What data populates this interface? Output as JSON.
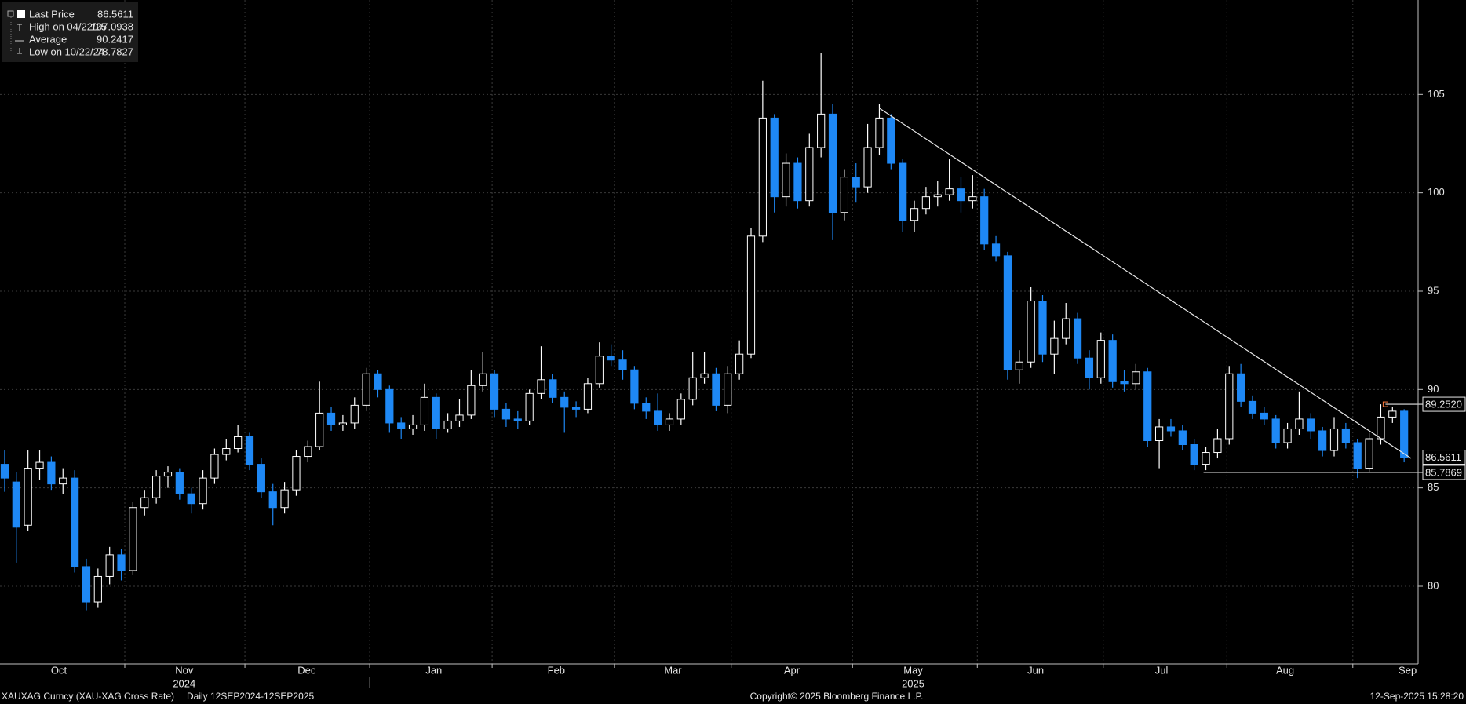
{
  "chart_data": {
    "type": "candlestick",
    "ylim": [
      76.05,
      109.8
    ],
    "yticks": [
      80,
      85,
      90,
      95,
      100,
      105
    ],
    "xlim": [
      -0.4,
      121.2
    ],
    "xticks": [
      {
        "value": 4.65,
        "label": "Oct"
      },
      {
        "value": 15.4,
        "label": "Nov"
      },
      {
        "value": 25.9,
        "label": "Dec"
      },
      {
        "value": 36.8,
        "label": "Jan"
      },
      {
        "value": 47.3,
        "label": "Feb"
      },
      {
        "value": 57.3,
        "label": "Mar"
      },
      {
        "value": 67.5,
        "label": "Apr"
      },
      {
        "value": 77.9,
        "label": "May"
      },
      {
        "value": 88.4,
        "label": "Jun"
      },
      {
        "value": 99.2,
        "label": "Jul"
      },
      {
        "value": 109.8,
        "label": "Aug"
      },
      {
        "value": 120.3,
        "label": "Sep"
      }
    ],
    "xgrid": [
      10.3,
      20.6,
      31.3,
      41.8,
      52.3,
      62.3,
      72.7,
      83.4,
      94.2,
      104.8,
      115.6
    ],
    "year_ticks": [
      {
        "value": 15.4,
        "label": "2024"
      },
      {
        "value": 77.9,
        "label": "2025"
      }
    ],
    "grid": true,
    "up_color": "#ffffff",
    "down_color": "#1e88f5",
    "ohlc": [
      [
        86.2,
        86.9,
        84.8,
        85.5
      ],
      [
        85.3,
        85.8,
        81.2,
        83.0
      ],
      [
        83.1,
        86.9,
        82.8,
        86.0
      ],
      [
        86.0,
        86.9,
        85.4,
        86.3
      ],
      [
        86.3,
        86.6,
        84.9,
        85.2
      ],
      [
        85.2,
        86.0,
        84.7,
        85.5
      ],
      [
        85.5,
        85.9,
        80.7,
        81.0
      ],
      [
        81.0,
        81.4,
        78.78,
        79.2
      ],
      [
        79.2,
        80.9,
        78.9,
        80.5
      ],
      [
        80.5,
        82.0,
        80.1,
        81.6
      ],
      [
        81.6,
        81.9,
        80.3,
        80.8
      ],
      [
        80.8,
        84.3,
        80.6,
        84.0
      ],
      [
        84.0,
        84.9,
        83.6,
        84.5
      ],
      [
        84.5,
        85.9,
        84.2,
        85.6
      ],
      [
        85.6,
        86.1,
        85.0,
        85.8
      ],
      [
        85.8,
        86.0,
        84.4,
        84.7
      ],
      [
        84.7,
        85.0,
        83.7,
        84.2
      ],
      [
        84.2,
        85.9,
        83.9,
        85.5
      ],
      [
        85.5,
        87.0,
        85.2,
        86.7
      ],
      [
        86.7,
        87.5,
        86.4,
        87.0
      ],
      [
        87.0,
        88.2,
        86.8,
        87.6
      ],
      [
        87.6,
        87.8,
        85.9,
        86.2
      ],
      [
        86.2,
        86.5,
        84.5,
        84.8
      ],
      [
        84.8,
        85.2,
        83.1,
        84.0
      ],
      [
        84.0,
        85.3,
        83.7,
        84.9
      ],
      [
        84.9,
        86.9,
        84.6,
        86.6
      ],
      [
        86.6,
        87.4,
        86.3,
        87.1
      ],
      [
        87.1,
        90.4,
        86.9,
        88.8
      ],
      [
        88.8,
        89.1,
        87.9,
        88.2
      ],
      [
        88.2,
        88.7,
        87.9,
        88.3
      ],
      [
        88.3,
        89.6,
        88.0,
        89.2
      ],
      [
        89.2,
        91.1,
        88.9,
        90.8
      ],
      [
        90.8,
        91.0,
        89.6,
        90.0
      ],
      [
        90.0,
        90.2,
        87.8,
        88.3
      ],
      [
        88.3,
        88.6,
        87.5,
        88.0
      ],
      [
        88.0,
        88.7,
        87.7,
        88.2
      ],
      [
        88.2,
        90.3,
        87.9,
        89.6
      ],
      [
        89.6,
        89.8,
        87.5,
        88.0
      ],
      [
        88.0,
        88.8,
        87.8,
        88.4
      ],
      [
        88.4,
        89.5,
        88.1,
        88.7
      ],
      [
        88.7,
        91.0,
        88.5,
        90.2
      ],
      [
        90.2,
        91.9,
        89.9,
        90.8
      ],
      [
        90.8,
        91.0,
        88.6,
        89.0
      ],
      [
        89.0,
        89.3,
        88.1,
        88.5
      ],
      [
        88.5,
        88.9,
        88.0,
        88.4
      ],
      [
        88.4,
        90.0,
        88.2,
        89.8
      ],
      [
        89.8,
        92.2,
        89.5,
        90.5
      ],
      [
        90.5,
        90.8,
        89.3,
        89.6
      ],
      [
        89.6,
        89.9,
        87.8,
        89.1
      ],
      [
        89.1,
        89.4,
        88.6,
        89.0
      ],
      [
        89.0,
        90.6,
        88.8,
        90.3
      ],
      [
        90.3,
        92.4,
        90.1,
        91.7
      ],
      [
        91.7,
        92.3,
        91.2,
        91.5
      ],
      [
        91.5,
        92.0,
        90.5,
        91.0
      ],
      [
        91.0,
        91.2,
        89.0,
        89.3
      ],
      [
        89.3,
        89.6,
        88.5,
        88.9
      ],
      [
        88.9,
        89.8,
        87.9,
        88.2
      ],
      [
        88.2,
        88.8,
        87.9,
        88.5
      ],
      [
        88.5,
        89.8,
        88.2,
        89.5
      ],
      [
        89.5,
        91.9,
        89.2,
        90.6
      ],
      [
        90.6,
        91.9,
        90.3,
        90.8
      ],
      [
        90.8,
        91.1,
        88.9,
        89.2
      ],
      [
        89.2,
        91.2,
        88.8,
        90.8
      ],
      [
        90.8,
        92.5,
        90.5,
        91.8
      ],
      [
        91.8,
        98.2,
        91.6,
        97.8
      ],
      [
        97.8,
        105.7,
        97.5,
        103.8
      ],
      [
        103.8,
        104.0,
        99.0,
        99.8
      ],
      [
        99.8,
        102.0,
        99.3,
        101.5
      ],
      [
        101.5,
        101.8,
        99.2,
        99.6
      ],
      [
        99.6,
        103.0,
        99.3,
        102.3
      ],
      [
        102.3,
        107.09,
        101.8,
        104.0
      ],
      [
        104.0,
        104.5,
        97.6,
        99.0
      ],
      [
        99.0,
        101.2,
        98.6,
        100.8
      ],
      [
        100.8,
        101.5,
        99.5,
        100.3
      ],
      [
        100.3,
        103.5,
        100.0,
        102.3
      ],
      [
        102.3,
        104.5,
        101.9,
        103.8
      ],
      [
        103.8,
        104.0,
        101.2,
        101.5
      ],
      [
        101.5,
        101.7,
        98.0,
        98.6
      ],
      [
        98.6,
        99.6,
        98.0,
        99.2
      ],
      [
        99.2,
        100.3,
        98.9,
        99.8
      ],
      [
        99.8,
        100.6,
        99.3,
        99.9
      ],
      [
        99.9,
        101.7,
        99.6,
        100.2
      ],
      [
        100.2,
        100.8,
        99.0,
        99.6
      ],
      [
        99.6,
        100.9,
        99.2,
        99.8
      ],
      [
        99.8,
        100.2,
        97.1,
        97.4
      ],
      [
        97.4,
        97.8,
        96.5,
        96.8
      ],
      [
        96.8,
        97.0,
        90.5,
        91.0
      ],
      [
        91.0,
        92.0,
        90.3,
        91.4
      ],
      [
        91.4,
        95.2,
        91.1,
        94.5
      ],
      [
        94.5,
        94.8,
        91.4,
        91.8
      ],
      [
        91.8,
        93.5,
        90.8,
        92.6
      ],
      [
        92.6,
        94.4,
        92.3,
        93.6
      ],
      [
        93.6,
        93.9,
        91.3,
        91.6
      ],
      [
        91.6,
        92.0,
        90.0,
        90.6
      ],
      [
        90.6,
        92.9,
        90.3,
        92.5
      ],
      [
        92.5,
        92.8,
        90.1,
        90.4
      ],
      [
        90.4,
        91.0,
        89.9,
        90.3
      ],
      [
        90.3,
        91.3,
        90.0,
        90.9
      ],
      [
        90.9,
        91.1,
        87.1,
        87.4
      ],
      [
        87.4,
        88.5,
        86.0,
        88.1
      ],
      [
        88.1,
        88.5,
        87.6,
        87.9
      ],
      [
        87.9,
        88.2,
        86.9,
        87.2
      ],
      [
        87.2,
        87.5,
        85.9,
        86.2
      ],
      [
        86.2,
        87.1,
        85.9,
        86.8
      ],
      [
        86.8,
        88.0,
        86.5,
        87.5
      ],
      [
        87.5,
        91.2,
        87.2,
        90.8
      ],
      [
        90.8,
        91.3,
        89.1,
        89.4
      ],
      [
        89.4,
        89.7,
        88.5,
        88.8
      ],
      [
        88.8,
        89.1,
        88.2,
        88.5
      ],
      [
        88.5,
        88.7,
        87.0,
        87.3
      ],
      [
        87.3,
        88.3,
        87.0,
        88.0
      ],
      [
        88.0,
        89.9,
        87.7,
        88.5
      ],
      [
        88.5,
        88.8,
        87.5,
        87.9
      ],
      [
        87.9,
        88.1,
        86.6,
        86.9
      ],
      [
        86.9,
        88.6,
        86.6,
        88.0
      ],
      [
        88.0,
        88.3,
        87.0,
        87.3
      ],
      [
        87.3,
        87.5,
        85.5,
        86.0
      ],
      [
        86.0,
        87.8,
        85.8,
        87.5
      ],
      [
        87.5,
        89.25,
        87.2,
        88.6
      ],
      [
        88.6,
        89.1,
        88.3,
        88.9
      ],
      [
        88.9,
        89.0,
        86.3,
        86.5611
      ]
    ],
    "legend": [
      {
        "label": "Last Price",
        "value": 86.5611
      },
      {
        "label": "High on 04/22/25",
        "value": 107.0938
      },
      {
        "label": "Average",
        "value": 90.2417
      },
      {
        "label": "Low on 10/22/24",
        "value": 78.7827
      }
    ],
    "trendline": {
      "x": [
        75,
        120.6
      ],
      "y": [
        104.3,
        86.5
      ]
    },
    "hlines": [
      {
        "value": 89.252,
        "label": "89.2520",
        "x_start": 118.4
      },
      {
        "value": 85.7869,
        "label": "85.7869",
        "x_start": 102.8
      }
    ],
    "footer": {
      "security": "XAUXAG Curncy (XAU-XAG Cross Rate)",
      "period": "Daily 12SEP2024-12SEP2025",
      "copyright": "Copyright© 2025 Bloomberg Finance L.P.",
      "timestamp": "12-Sep-2025 15:28:20"
    }
  }
}
